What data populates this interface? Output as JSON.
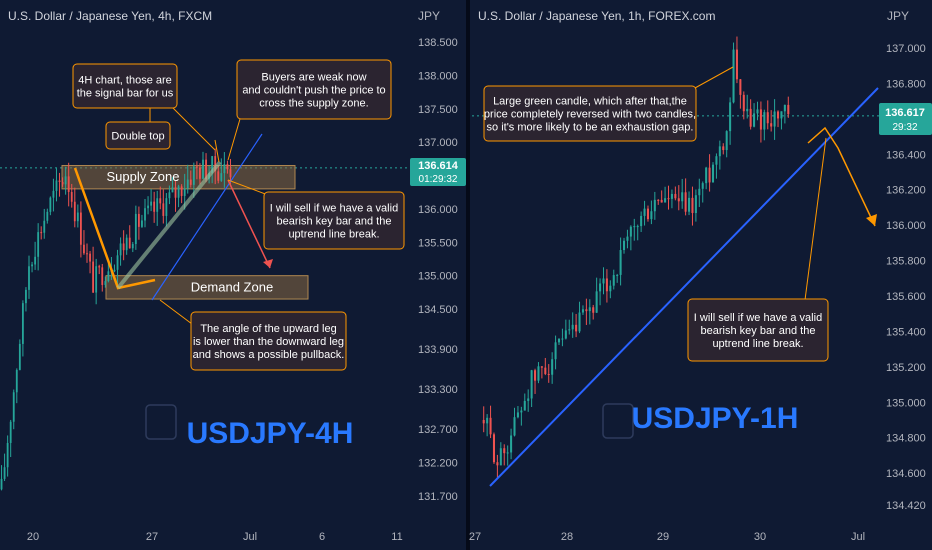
{
  "colors": {
    "background": "#0f1a33",
    "axis_text": "#b2b5be",
    "bull": "#26a69a",
    "bear": "#ef5350",
    "trendline": "#2962ff",
    "orange": "#ff9800",
    "zone_fill": "#8b6a3f",
    "price_badge": "#26a69a",
    "title_blue": "#2979ff",
    "note_fill": "#2b2430",
    "note_border": "#ff9800"
  },
  "chart_data": [
    {
      "type": "candlestick",
      "title": "U.S. Dollar / Japanese Yen, 4h, FXCM",
      "ylabel": "JPY",
      "ylim": [
        131.4,
        138.8
      ],
      "yticks": [
        "138.500",
        "138.000",
        "137.500",
        "137.000",
        "136.500",
        "136.000",
        "135.500",
        "135.000",
        "134.500",
        "133.900",
        "133.300",
        "132.700",
        "132.200",
        "131.700"
      ],
      "ytick_values": [
        138.5,
        138.0,
        137.5,
        137.0,
        136.5,
        136.0,
        135.5,
        135.0,
        134.5,
        133.9,
        133.3,
        132.7,
        132.2,
        131.7
      ],
      "xticks": [
        "20",
        "27",
        "Jul",
        "6",
        "11"
      ],
      "current_price": "136.614",
      "countdown": "01:29:32",
      "watermark_title": "USDJPY-4H",
      "zones": [
        {
          "name": "Supply Zone",
          "low": 136.3,
          "high": 136.65
        },
        {
          "name": "Demand Zone",
          "low": 134.65,
          "high": 135.0
        }
      ],
      "annotations": [
        {
          "id": "signal",
          "text": [
            "4H chart, those are",
            "the signal bar for us"
          ]
        },
        {
          "id": "double_top",
          "text": [
            "Double top"
          ]
        },
        {
          "id": "buyers_weak",
          "text": [
            "Buyers are weak now",
            "and couldn't push the price to",
            "cross the supply zone."
          ]
        },
        {
          "id": "sell_4h",
          "text": [
            "I will sell if we have a valid",
            "bearish key bar and the",
            "uptrend line break."
          ]
        },
        {
          "id": "angle",
          "text": [
            "The angle of the upward leg",
            "is lower than the downward leg",
            "and shows a possible pullback."
          ]
        }
      ]
    },
    {
      "type": "candlestick",
      "title": "U.S. Dollar / Japanese Yen, 1h, FOREX.com",
      "ylabel": "JPY",
      "ylim": [
        134.38,
        137.1
      ],
      "yticks": [
        "137.000",
        "136.800",
        "136.400",
        "136.200",
        "136.000",
        "135.800",
        "135.600",
        "135.400",
        "135.200",
        "135.000",
        "134.800",
        "134.600",
        "134.420"
      ],
      "ytick_values": [
        137.0,
        136.8,
        136.4,
        136.2,
        136.0,
        135.8,
        135.6,
        135.4,
        135.2,
        135.0,
        134.8,
        134.6,
        134.42
      ],
      "xticks": [
        "27",
        "28",
        "29",
        "30",
        "Jul"
      ],
      "current_price": "136.617",
      "countdown": "29:32",
      "watermark_title": "USDJPY-1H",
      "annotations": [
        {
          "id": "green_candle",
          "text": [
            "Large green candle, which after that,the",
            "price completely reversed with two candles,",
            "so it's more likely to be an exhaustion gap."
          ]
        },
        {
          "id": "sell_1h",
          "text": [
            "I will sell if we have a valid",
            "bearish key bar and the",
            "uptrend line break."
          ]
        }
      ]
    }
  ]
}
